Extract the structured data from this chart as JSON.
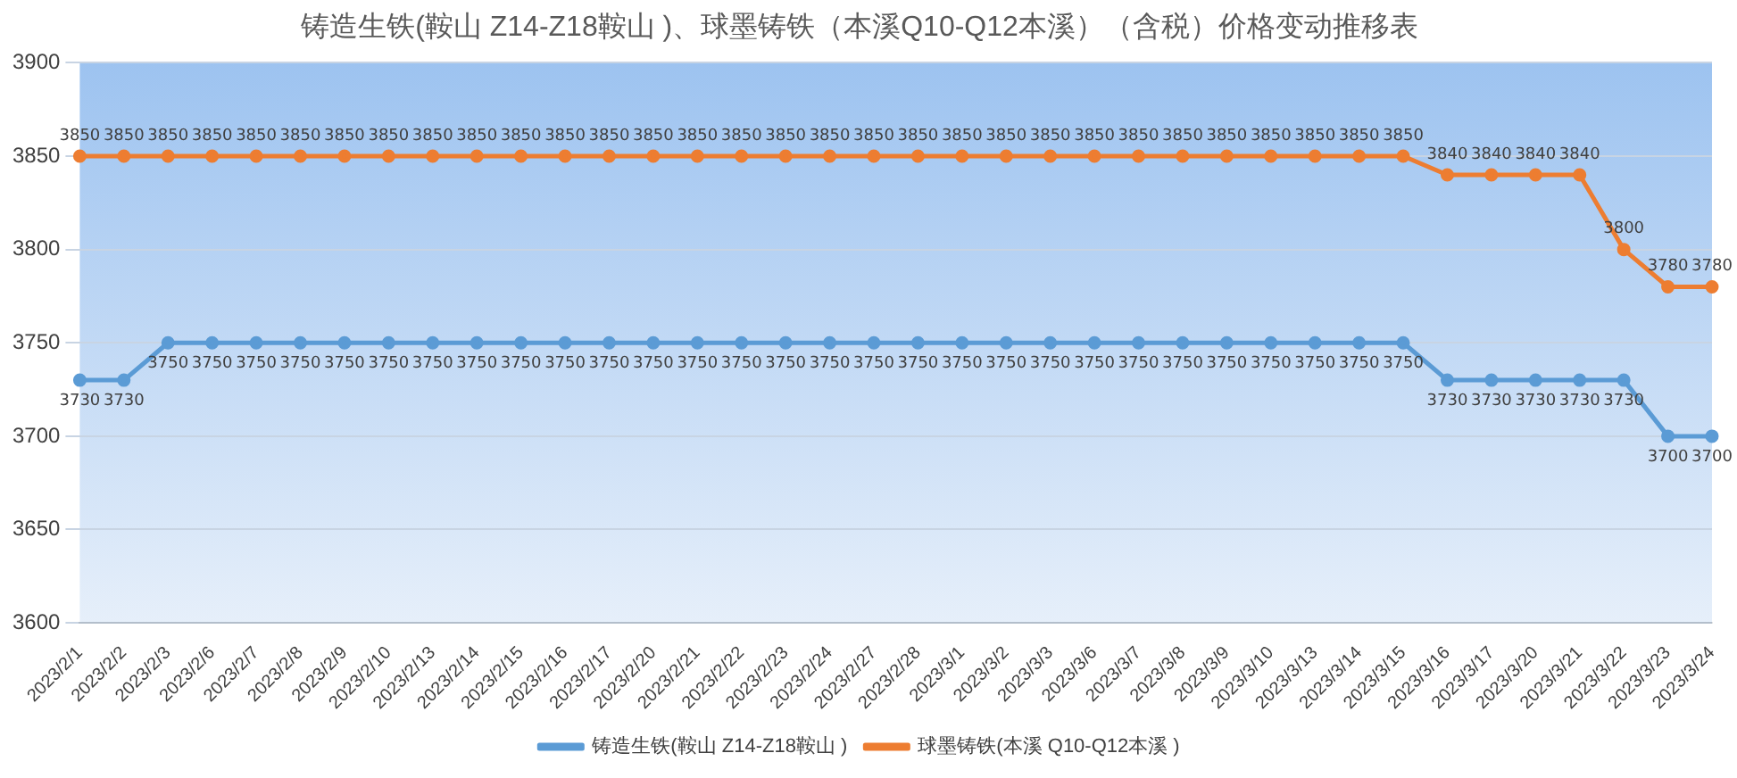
{
  "chart_data": {
    "type": "line",
    "title": "铸造生铁(鞍山 Z14-Z18鞍山 )、球墨铸铁（本溪Q10-Q12本溪）（含税）价格变动推移表",
    "categories": [
      "2023/2/1",
      "2023/2/2",
      "2023/2/3",
      "2023/2/6",
      "2023/2/7",
      "2023/2/8",
      "2023/2/9",
      "2023/2/10",
      "2023/2/13",
      "2023/2/14",
      "2023/2/15",
      "2023/2/16",
      "2023/2/17",
      "2023/2/20",
      "2023/2/21",
      "2023/2/22",
      "2023/2/23",
      "2023/2/24",
      "2023/2/27",
      "2023/2/28",
      "2023/3/1",
      "2023/3/2",
      "2023/3/3",
      "2023/3/6",
      "2023/3/7",
      "2023/3/8",
      "2023/3/9",
      "2023/3/10",
      "2023/3/13",
      "2023/3/14",
      "2023/3/15",
      "2023/3/16",
      "2023/3/17",
      "2023/3/20",
      "2023/3/21",
      "2023/3/22",
      "2023/3/23",
      "2023/3/24"
    ],
    "series": [
      {
        "name": "铸造生铁(鞍山 Z14-Z18鞍山 )",
        "color": "#5b9bd5",
        "values": [
          3730,
          3730,
          3750,
          3750,
          3750,
          3750,
          3750,
          3750,
          3750,
          3750,
          3750,
          3750,
          3750,
          3750,
          3750,
          3750,
          3750,
          3750,
          3750,
          3750,
          3750,
          3750,
          3750,
          3750,
          3750,
          3750,
          3750,
          3750,
          3750,
          3750,
          3750,
          3730,
          3730,
          3730,
          3730,
          3730,
          3700,
          3700
        ]
      },
      {
        "name": "球墨铸铁(本溪 Q10-Q12本溪 )",
        "color": "#ed7d31",
        "values": [
          3850,
          3850,
          3850,
          3850,
          3850,
          3850,
          3850,
          3850,
          3850,
          3850,
          3850,
          3850,
          3850,
          3850,
          3850,
          3850,
          3850,
          3850,
          3850,
          3850,
          3850,
          3850,
          3850,
          3850,
          3850,
          3850,
          3850,
          3850,
          3850,
          3850,
          3850,
          3840,
          3840,
          3840,
          3840,
          3800,
          3780,
          3780
        ]
      }
    ],
    "ylim": [
      3600,
      3900
    ],
    "yticks": [
      3600,
      3650,
      3700,
      3750,
      3800,
      3850,
      3900
    ],
    "grid": "y",
    "legend": "bottom",
    "marker": "circle",
    "line_style": "solid",
    "data_labels": true
  }
}
